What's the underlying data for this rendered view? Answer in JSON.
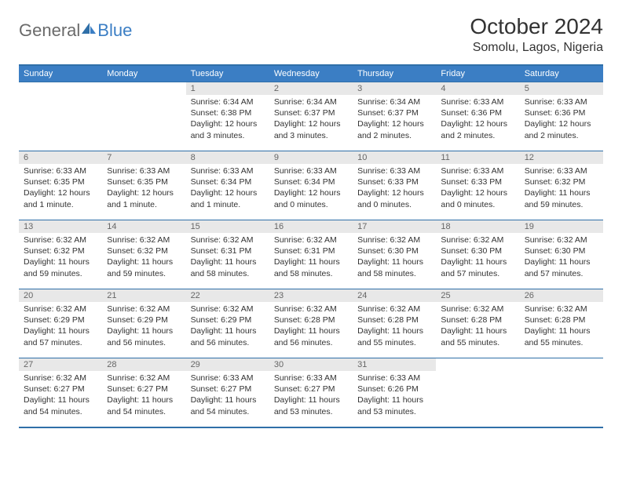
{
  "logo": {
    "part1": "General",
    "part2": "Blue"
  },
  "title": "October 2024",
  "location": "Somolu, Lagos, Nigeria",
  "colors": {
    "header_bg": "#3b7ec4",
    "border": "#2f6fa8",
    "daynum_bg": "#e8e8e8",
    "text": "#333333",
    "logo_gray": "#6a6a6a"
  },
  "weekdays": [
    "Sunday",
    "Monday",
    "Tuesday",
    "Wednesday",
    "Thursday",
    "Friday",
    "Saturday"
  ],
  "weeks": [
    [
      null,
      null,
      {
        "d": "1",
        "sr": "6:34 AM",
        "ss": "6:38 PM",
        "dl": "12 hours and 3 minutes."
      },
      {
        "d": "2",
        "sr": "6:34 AM",
        "ss": "6:37 PM",
        "dl": "12 hours and 3 minutes."
      },
      {
        "d": "3",
        "sr": "6:34 AM",
        "ss": "6:37 PM",
        "dl": "12 hours and 2 minutes."
      },
      {
        "d": "4",
        "sr": "6:33 AM",
        "ss": "6:36 PM",
        "dl": "12 hours and 2 minutes."
      },
      {
        "d": "5",
        "sr": "6:33 AM",
        "ss": "6:36 PM",
        "dl": "12 hours and 2 minutes."
      }
    ],
    [
      {
        "d": "6",
        "sr": "6:33 AM",
        "ss": "6:35 PM",
        "dl": "12 hours and 1 minute."
      },
      {
        "d": "7",
        "sr": "6:33 AM",
        "ss": "6:35 PM",
        "dl": "12 hours and 1 minute."
      },
      {
        "d": "8",
        "sr": "6:33 AM",
        "ss": "6:34 PM",
        "dl": "12 hours and 1 minute."
      },
      {
        "d": "9",
        "sr": "6:33 AM",
        "ss": "6:34 PM",
        "dl": "12 hours and 0 minutes."
      },
      {
        "d": "10",
        "sr": "6:33 AM",
        "ss": "6:33 PM",
        "dl": "12 hours and 0 minutes."
      },
      {
        "d": "11",
        "sr": "6:33 AM",
        "ss": "6:33 PM",
        "dl": "12 hours and 0 minutes."
      },
      {
        "d": "12",
        "sr": "6:33 AM",
        "ss": "6:32 PM",
        "dl": "11 hours and 59 minutes."
      }
    ],
    [
      {
        "d": "13",
        "sr": "6:32 AM",
        "ss": "6:32 PM",
        "dl": "11 hours and 59 minutes."
      },
      {
        "d": "14",
        "sr": "6:32 AM",
        "ss": "6:32 PM",
        "dl": "11 hours and 59 minutes."
      },
      {
        "d": "15",
        "sr": "6:32 AM",
        "ss": "6:31 PM",
        "dl": "11 hours and 58 minutes."
      },
      {
        "d": "16",
        "sr": "6:32 AM",
        "ss": "6:31 PM",
        "dl": "11 hours and 58 minutes."
      },
      {
        "d": "17",
        "sr": "6:32 AM",
        "ss": "6:30 PM",
        "dl": "11 hours and 58 minutes."
      },
      {
        "d": "18",
        "sr": "6:32 AM",
        "ss": "6:30 PM",
        "dl": "11 hours and 57 minutes."
      },
      {
        "d": "19",
        "sr": "6:32 AM",
        "ss": "6:30 PM",
        "dl": "11 hours and 57 minutes."
      }
    ],
    [
      {
        "d": "20",
        "sr": "6:32 AM",
        "ss": "6:29 PM",
        "dl": "11 hours and 57 minutes."
      },
      {
        "d": "21",
        "sr": "6:32 AM",
        "ss": "6:29 PM",
        "dl": "11 hours and 56 minutes."
      },
      {
        "d": "22",
        "sr": "6:32 AM",
        "ss": "6:29 PM",
        "dl": "11 hours and 56 minutes."
      },
      {
        "d": "23",
        "sr": "6:32 AM",
        "ss": "6:28 PM",
        "dl": "11 hours and 56 minutes."
      },
      {
        "d": "24",
        "sr": "6:32 AM",
        "ss": "6:28 PM",
        "dl": "11 hours and 55 minutes."
      },
      {
        "d": "25",
        "sr": "6:32 AM",
        "ss": "6:28 PM",
        "dl": "11 hours and 55 minutes."
      },
      {
        "d": "26",
        "sr": "6:32 AM",
        "ss": "6:28 PM",
        "dl": "11 hours and 55 minutes."
      }
    ],
    [
      {
        "d": "27",
        "sr": "6:32 AM",
        "ss": "6:27 PM",
        "dl": "11 hours and 54 minutes."
      },
      {
        "d": "28",
        "sr": "6:32 AM",
        "ss": "6:27 PM",
        "dl": "11 hours and 54 minutes."
      },
      {
        "d": "29",
        "sr": "6:33 AM",
        "ss": "6:27 PM",
        "dl": "11 hours and 54 minutes."
      },
      {
        "d": "30",
        "sr": "6:33 AM",
        "ss": "6:27 PM",
        "dl": "11 hours and 53 minutes."
      },
      {
        "d": "31",
        "sr": "6:33 AM",
        "ss": "6:26 PM",
        "dl": "11 hours and 53 minutes."
      },
      null,
      null
    ]
  ]
}
